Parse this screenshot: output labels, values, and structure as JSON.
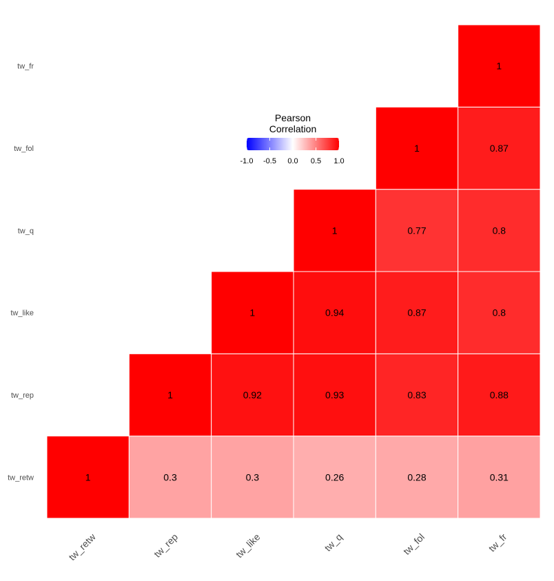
{
  "chart_data": {
    "type": "heatmap",
    "variables": [
      "tw_retw",
      "tw_rep",
      "tw_like",
      "tw_q",
      "tw_fol",
      "tw_fr"
    ],
    "matrix": [
      [
        1,
        0.3,
        0.3,
        0.26,
        0.28,
        0.31
      ],
      [
        0.3,
        1,
        0.92,
        0.93,
        0.83,
        0.88
      ],
      [
        0.3,
        0.92,
        1,
        0.94,
        0.87,
        0.8
      ],
      [
        0.26,
        0.93,
        0.94,
        1,
        0.77,
        0.8
      ],
      [
        0.28,
        0.83,
        0.87,
        0.77,
        1,
        0.87
      ],
      [
        0.31,
        0.88,
        0.8,
        0.8,
        0.87,
        1
      ]
    ],
    "triangle": "upper",
    "legend": {
      "title_lines": [
        "Pearson",
        "Correlation"
      ],
      "ticks": [
        "-1.0",
        "-0.5",
        "0.0",
        "0.5",
        "1.0"
      ],
      "tick_values": [
        -1,
        -0.5,
        0,
        0.5,
        1
      ],
      "limits": [
        -1,
        1
      ],
      "colors": {
        "low": "#0000ff",
        "mid": "#ffffff",
        "high": "#ff0000"
      },
      "placement": "top-center"
    },
    "grid": false
  }
}
